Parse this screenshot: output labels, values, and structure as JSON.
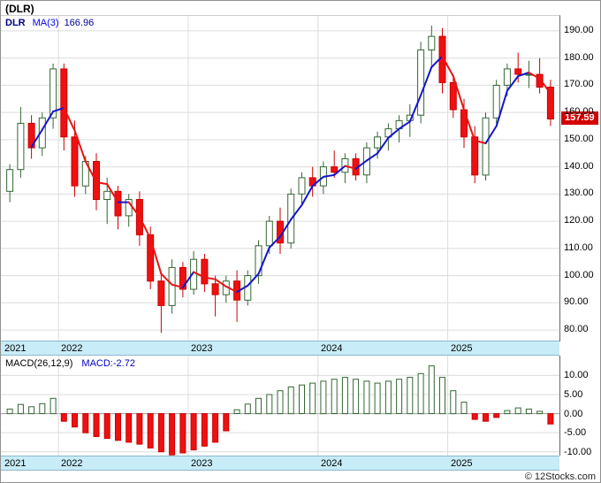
{
  "window": {
    "title": "(DLR)",
    "watermark": "© 12Stocks.com"
  },
  "legend": {
    "symbol": "DLR",
    "indicator": "MA(3)",
    "value": "166.96"
  },
  "price_tag": {
    "value": "157.59"
  },
  "macd_legend": {
    "indicator": "MACD(26,12,9)",
    "reading": "MACD:-2.72"
  },
  "colors": {
    "up": "#336633",
    "up_fill": "#ffffff",
    "down": "#cc0000",
    "down_fill": "#ee1111",
    "ma_up": "#1414cc",
    "ma_down": "#e61414",
    "grid": "#dcdcdc",
    "zero_line": "#999999",
    "band_bg": "#c8ecf8",
    "tag_bg": "#d40000",
    "tag_fg": "#ffffff"
  },
  "chart_data": [
    {
      "type": "candlestick",
      "name": "DLR monthly price",
      "title": "(DLR)",
      "last_price": 157.59,
      "overlay": {
        "name": "MA(3)",
        "period": 3,
        "last_value": 166.96
      },
      "ylim": [
        75.8,
        195.5
      ],
      "ytick_labels": [
        "190.00",
        "180.00",
        "170.00",
        "160.00",
        "150.00",
        "140.00",
        "130.00",
        "120.00",
        "110.00",
        "100.00",
        "90.00",
        "80.00"
      ],
      "x_year_labels": [
        "2021",
        "2022",
        "2023",
        "2024",
        "2025"
      ],
      "candles": [
        {
          "d": "2021-08",
          "o": 131,
          "h": 141,
          "l": 127,
          "c": 139
        },
        {
          "d": "2021-09",
          "o": 139,
          "h": 162,
          "l": 136,
          "c": 156
        },
        {
          "d": "2021-10",
          "o": 156,
          "h": 159,
          "l": 143,
          "c": 147
        },
        {
          "d": "2021-11",
          "o": 147,
          "h": 160,
          "l": 144,
          "c": 158
        },
        {
          "d": "2021-12",
          "o": 158,
          "h": 178,
          "l": 154,
          "c": 176
        },
        {
          "d": "2022-01",
          "o": 176,
          "h": 178,
          "l": 146,
          "c": 151
        },
        {
          "d": "2022-02",
          "o": 151,
          "h": 157,
          "l": 129,
          "c": 133
        },
        {
          "d": "2022-03",
          "o": 133,
          "h": 144,
          "l": 130,
          "c": 142
        },
        {
          "d": "2022-04",
          "o": 142,
          "h": 145,
          "l": 124,
          "c": 128
        },
        {
          "d": "2022-05",
          "o": 128,
          "h": 136,
          "l": 119,
          "c": 131
        },
        {
          "d": "2022-06",
          "o": 131,
          "h": 133,
          "l": 117,
          "c": 122
        },
        {
          "d": "2022-07",
          "o": 122,
          "h": 130,
          "l": 118,
          "c": 128
        },
        {
          "d": "2022-08",
          "o": 128,
          "h": 131,
          "l": 111,
          "c": 115
        },
        {
          "d": "2022-09",
          "o": 115,
          "h": 118,
          "l": 95,
          "c": 98
        },
        {
          "d": "2022-10",
          "o": 98,
          "h": 101,
          "l": 79,
          "c": 89
        },
        {
          "d": "2022-11",
          "o": 89,
          "h": 106,
          "l": 86,
          "c": 103
        },
        {
          "d": "2022-12",
          "o": 103,
          "h": 105,
          "l": 92,
          "c": 95
        },
        {
          "d": "2023-01",
          "o": 95,
          "h": 109,
          "l": 93,
          "c": 106
        },
        {
          "d": "2023-02",
          "o": 106,
          "h": 108,
          "l": 94,
          "c": 97
        },
        {
          "d": "2023-03",
          "o": 97,
          "h": 100,
          "l": 85,
          "c": 93
        },
        {
          "d": "2023-04",
          "o": 93,
          "h": 100,
          "l": 90,
          "c": 98
        },
        {
          "d": "2023-05",
          "o": 98,
          "h": 102,
          "l": 83,
          "c": 91
        },
        {
          "d": "2023-06",
          "o": 91,
          "h": 102,
          "l": 89,
          "c": 100
        },
        {
          "d": "2023-07",
          "o": 100,
          "h": 113,
          "l": 97,
          "c": 111
        },
        {
          "d": "2023-08",
          "o": 111,
          "h": 122,
          "l": 108,
          "c": 120
        },
        {
          "d": "2023-09",
          "o": 120,
          "h": 125,
          "l": 108,
          "c": 112
        },
        {
          "d": "2023-10",
          "o": 112,
          "h": 132,
          "l": 110,
          "c": 130
        },
        {
          "d": "2023-11",
          "o": 130,
          "h": 138,
          "l": 126,
          "c": 136
        },
        {
          "d": "2023-12",
          "o": 136,
          "h": 140,
          "l": 129,
          "c": 133
        },
        {
          "d": "2024-01",
          "o": 133,
          "h": 142,
          "l": 130,
          "c": 140
        },
        {
          "d": "2024-02",
          "o": 140,
          "h": 146,
          "l": 136,
          "c": 138
        },
        {
          "d": "2024-03",
          "o": 138,
          "h": 145,
          "l": 134,
          "c": 143
        },
        {
          "d": "2024-04",
          "o": 143,
          "h": 145,
          "l": 135,
          "c": 137
        },
        {
          "d": "2024-05",
          "o": 137,
          "h": 149,
          "l": 134,
          "c": 147
        },
        {
          "d": "2024-06",
          "o": 147,
          "h": 153,
          "l": 143,
          "c": 151
        },
        {
          "d": "2024-07",
          "o": 151,
          "h": 156,
          "l": 146,
          "c": 154
        },
        {
          "d": "2024-08",
          "o": 154,
          "h": 159,
          "l": 149,
          "c": 157
        },
        {
          "d": "2024-09",
          "o": 157,
          "h": 163,
          "l": 151,
          "c": 159
        },
        {
          "d": "2024-10",
          "o": 159,
          "h": 186,
          "l": 156,
          "c": 183
        },
        {
          "d": "2024-11",
          "o": 183,
          "h": 192,
          "l": 177,
          "c": 188
        },
        {
          "d": "2024-12",
          "o": 188,
          "h": 191,
          "l": 167,
          "c": 171
        },
        {
          "d": "2025-01",
          "o": 171,
          "h": 174,
          "l": 158,
          "c": 161
        },
        {
          "d": "2025-02",
          "o": 161,
          "h": 165,
          "l": 147,
          "c": 151
        },
        {
          "d": "2025-03",
          "o": 151,
          "h": 155,
          "l": 134,
          "c": 137
        },
        {
          "d": "2025-04",
          "o": 137,
          "h": 160,
          "l": 135,
          "c": 158
        },
        {
          "d": "2025-05",
          "o": 158,
          "h": 172,
          "l": 155,
          "c": 170
        },
        {
          "d": "2025-06",
          "o": 170,
          "h": 178,
          "l": 166,
          "c": 176
        },
        {
          "d": "2025-07",
          "o": 176,
          "h": 182,
          "l": 171,
          "c": 174
        },
        {
          "d": "2025-08",
          "o": 174,
          "h": 179,
          "l": 169,
          "c": 174
        },
        {
          "d": "2025-09",
          "o": 174,
          "h": 180,
          "l": 167,
          "c": 169.3
        },
        {
          "d": "2025-10",
          "o": 169.3,
          "h": 172,
          "l": 155,
          "c": 157.59
        }
      ]
    },
    {
      "type": "bar",
      "name": "MACD(26,12,9) histogram",
      "current": -2.72,
      "ylim": [
        -11,
        15.2
      ],
      "ytick_labels": [
        "10.00",
        "5.00",
        "0.00",
        "-5.00",
        "-10.00"
      ],
      "x_year_labels": [
        "2021",
        "2022",
        "2023",
        "2024",
        "2025"
      ],
      "values": [
        1.2,
        2.4,
        1.8,
        2.6,
        4.0,
        -2.0,
        -3.5,
        -5.0,
        -6.0,
        -6.5,
        -7.0,
        -7.5,
        -8.0,
        -9.0,
        -10.0,
        -10.8,
        -10.3,
        -9.5,
        -8.5,
        -7.5,
        -4.5,
        1.0,
        2.5,
        4.0,
        5.0,
        6.0,
        7.0,
        7.5,
        8.0,
        8.5,
        9.0,
        9.5,
        9.0,
        8.5,
        8.0,
        8.5,
        9.0,
        9.5,
        10.5,
        12.5,
        9.5,
        6.0,
        3.0,
        -1.5,
        -2.0,
        -1.0,
        0.8,
        1.5,
        1.2,
        0.6,
        -2.72
      ]
    }
  ]
}
